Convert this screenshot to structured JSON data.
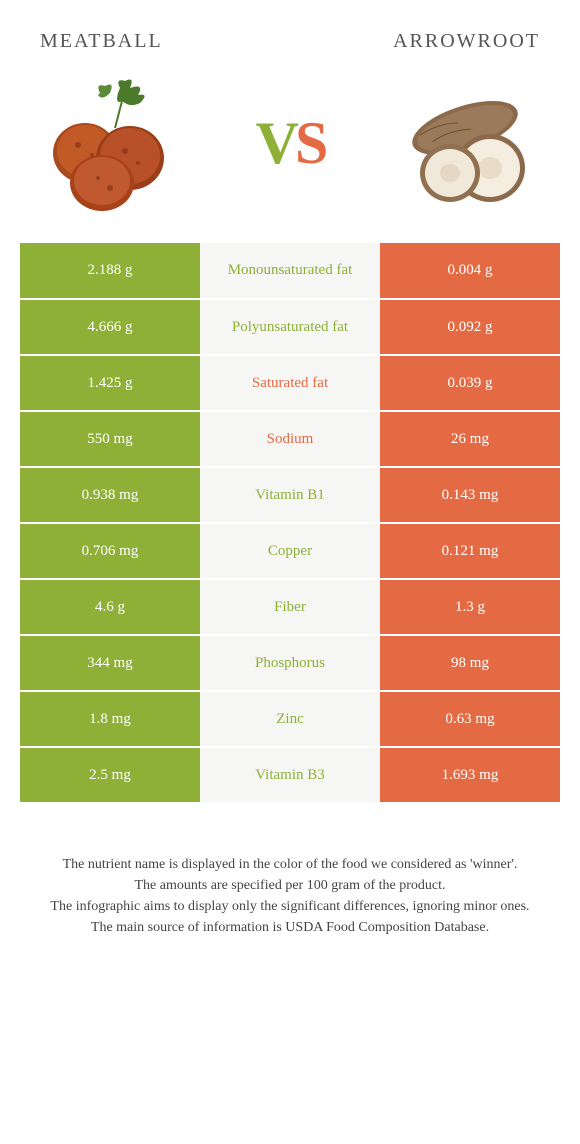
{
  "colors": {
    "green": "#8fb037",
    "orange": "#e46a44",
    "mid_bg": "#f6f6f4",
    "text": "#555555"
  },
  "header": {
    "left_title": "Meatball",
    "right_title": "Arrowroot",
    "vs_v": "V",
    "vs_s": "S"
  },
  "rows": [
    {
      "left": "2.188 g",
      "label": "Monounsaturated fat",
      "right": "0.004 g",
      "winner": "left"
    },
    {
      "left": "4.666 g",
      "label": "Polyunsaturated fat",
      "right": "0.092 g",
      "winner": "left"
    },
    {
      "left": "1.425 g",
      "label": "Saturated fat",
      "right": "0.039 g",
      "winner": "right"
    },
    {
      "left": "550 mg",
      "label": "Sodium",
      "right": "26 mg",
      "winner": "right"
    },
    {
      "left": "0.938 mg",
      "label": "Vitamin B1",
      "right": "0.143 mg",
      "winner": "left"
    },
    {
      "left": "0.706 mg",
      "label": "Copper",
      "right": "0.121 mg",
      "winner": "left"
    },
    {
      "left": "4.6 g",
      "label": "Fiber",
      "right": "1.3 g",
      "winner": "left"
    },
    {
      "left": "344 mg",
      "label": "Phosphorus",
      "right": "98 mg",
      "winner": "left"
    },
    {
      "left": "1.8 mg",
      "label": "Zinc",
      "right": "0.63 mg",
      "winner": "left"
    },
    {
      "left": "2.5 mg",
      "label": "Vitamin B3",
      "right": "1.693 mg",
      "winner": "left"
    }
  ],
  "footnotes": [
    "The nutrient name is displayed in the color of the food we considered as 'winner'.",
    "The amounts are specified per 100 gram of the product.",
    "The infographic aims to display only the significant differences, ignoring minor ones.",
    "The main source of information is USDA Food Composition Database."
  ]
}
